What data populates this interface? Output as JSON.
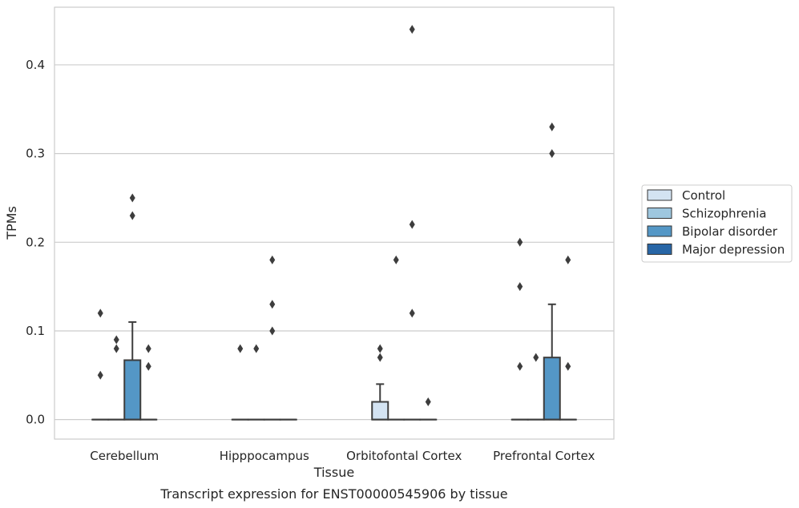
{
  "chart_data": {
    "type": "box",
    "title": "",
    "caption": "Transcript expression for ENST00000545906 by tissue",
    "xlabel": "Tissue",
    "ylabel": "TPMs",
    "categories": [
      "Cerebellum",
      "Hipppocampus",
      "Orbitofontal Cortex",
      "Prefrontal Cortex"
    ],
    "ylim": [
      -0.022,
      0.465
    ],
    "yticks": [
      0.0,
      0.1,
      0.2,
      0.3,
      0.4
    ],
    "ytick_labels": [
      "0.0",
      "0.1",
      "0.2",
      "0.3",
      "0.4"
    ],
    "grid": true,
    "legend_position": "right",
    "series": [
      {
        "name": "Control",
        "color": "#d3e3f2",
        "boxes": [
          {
            "q1": 0,
            "median": 0,
            "q3": 0,
            "whisker_low": 0,
            "whisker_high": 0,
            "outliers": [
              0.05,
              0.12
            ]
          },
          {
            "q1": 0,
            "median": 0,
            "q3": 0,
            "whisker_low": 0,
            "whisker_high": 0,
            "outliers": [
              0.08
            ]
          },
          {
            "q1": 0,
            "median": 0,
            "q3": 0.02,
            "whisker_low": 0,
            "whisker_high": 0.04,
            "outliers": [
              0.07,
              0.08
            ]
          },
          {
            "q1": 0,
            "median": 0,
            "q3": 0,
            "whisker_low": 0,
            "whisker_high": 0,
            "outliers": [
              0.06,
              0.15,
              0.2
            ]
          }
        ]
      },
      {
        "name": "Schizophrenia",
        "color": "#9ec7df",
        "boxes": [
          {
            "q1": 0,
            "median": 0,
            "q3": 0,
            "whisker_low": 0,
            "whisker_high": 0,
            "outliers": [
              0.08,
              0.09
            ]
          },
          {
            "q1": 0,
            "median": 0,
            "q3": 0,
            "whisker_low": 0,
            "whisker_high": 0,
            "outliers": [
              0.08
            ]
          },
          {
            "q1": 0,
            "median": 0,
            "q3": 0,
            "whisker_low": 0,
            "whisker_high": 0,
            "outliers": [
              0.18
            ]
          },
          {
            "q1": 0,
            "median": 0,
            "q3": 0,
            "whisker_low": 0,
            "whisker_high": 0,
            "outliers": [
              0.07
            ]
          }
        ]
      },
      {
        "name": "Bipolar disorder",
        "color": "#5497c6",
        "boxes": [
          {
            "q1": 0,
            "median": 0,
            "q3": 0.067,
            "whisker_low": 0,
            "whisker_high": 0.11,
            "outliers": [
              0.23,
              0.25
            ]
          },
          {
            "q1": 0,
            "median": 0,
            "q3": 0,
            "whisker_low": 0,
            "whisker_high": 0,
            "outliers": [
              0.1,
              0.13,
              0.18
            ]
          },
          {
            "q1": 0,
            "median": 0,
            "q3": 0,
            "whisker_low": 0,
            "whisker_high": 0,
            "outliers": [
              0.12,
              0.22,
              0.44
            ]
          },
          {
            "q1": 0,
            "median": 0,
            "q3": 0.07,
            "whisker_low": 0,
            "whisker_high": 0.13,
            "outliers": [
              0.3,
              0.33
            ]
          }
        ]
      },
      {
        "name": "Major depression",
        "color": "#2866a6",
        "boxes": [
          {
            "q1": 0,
            "median": 0,
            "q3": 0,
            "whisker_low": 0,
            "whisker_high": 0,
            "outliers": [
              0.06,
              0.08
            ]
          },
          {
            "q1": 0,
            "median": 0,
            "q3": 0,
            "whisker_low": 0,
            "whisker_high": 0,
            "outliers": []
          },
          {
            "q1": 0,
            "median": 0,
            "q3": 0,
            "whisker_low": 0,
            "whisker_high": 0,
            "outliers": [
              0.02
            ]
          },
          {
            "q1": 0,
            "median": 0,
            "q3": 0,
            "whisker_low": 0,
            "whisker_high": 0,
            "outliers": [
              0.06,
              0.18
            ]
          }
        ]
      }
    ]
  },
  "colors": {
    "gridline": "#cccccc",
    "frame": "#cccccc",
    "box_edge": "#3d3d3d",
    "outlier": "#3d3d3d"
  }
}
